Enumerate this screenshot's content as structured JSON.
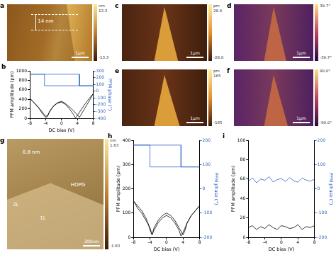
{
  "images": [
    {
      "panel": "a",
      "scale_bar": "1μm",
      "colorbar": {
        "unit": "nm",
        "ticks": [
          13.3,
          -13.3
        ]
      },
      "annotations": [
        "14 nm"
      ]
    },
    {
      "panel": "c",
      "scale_bar": "1μm",
      "colorbar": {
        "unit": "pm",
        "ticks": [
          {
            "value": 28,
            "label": "28.0"
          },
          {
            "value": -28,
            "label": "-28.0"
          }
        ]
      },
      "annotations": []
    },
    {
      "panel": "d",
      "scale_bar": "1μm",
      "colorbar": {
        "ticks": [
          {
            "value": 39.7,
            "label": "39.7°"
          },
          {
            "value": -39.7,
            "label": "-39.7°"
          }
        ]
      },
      "annotations": []
    },
    {
      "panel": "e",
      "scale_bar": "1μm",
      "colorbar": {
        "unit": "pm",
        "ticks": [
          165,
          -165
        ]
      },
      "annotations": []
    },
    {
      "panel": "f",
      "scale_bar": "1μm",
      "colorbar": {
        "ticks": [
          {
            "value": 90,
            "label": "90.0°"
          },
          {
            "value": -90,
            "label": "-90.0°"
          }
        ]
      },
      "annotations": []
    },
    {
      "panel": "g",
      "scale_bar": "300nm",
      "colorbar": {
        "unit": "nm",
        "ticks": [
          1.63,
          -1.63
        ]
      },
      "annotations": [
        "0.8 nm",
        "2L",
        "1L",
        "HOPG"
      ]
    }
  ],
  "chart_data": [
    {
      "panel": "b",
      "type": "line",
      "xlabel": "DC bias (V)",
      "ylabel": "PFM amplitude (pm)",
      "y2label": "PFM phase (°)",
      "xlim": [
        -8,
        8
      ],
      "xticks": [
        -8,
        -4,
        0,
        4,
        8
      ],
      "ylim": [
        0,
        1000
      ],
      "yticks": [
        0,
        200,
        400,
        600,
        800,
        1000
      ],
      "y2lim": [
        -400,
        300
      ],
      "y2ticks": [
        -400,
        -300,
        -200,
        -100,
        0,
        100,
        200,
        300
      ],
      "grid": false,
      "series": [
        {
          "color": "#000000",
          "axis": "y",
          "x": [
            -8,
            -7,
            -6,
            -5,
            -4.5,
            -4,
            -3.5,
            -3,
            -2,
            -1,
            0,
            1,
            2,
            3,
            4,
            4.5,
            5,
            6,
            7,
            8,
            8,
            7,
            6,
            5,
            4,
            3.5,
            3,
            2,
            1,
            0,
            -1,
            -2,
            -3,
            -3.5,
            -4,
            -5,
            -6,
            -7,
            -8
          ],
          "values": [
            420,
            330,
            240,
            150,
            90,
            40,
            60,
            140,
            260,
            330,
            360,
            310,
            240,
            160,
            70,
            20,
            90,
            230,
            370,
            520,
            520,
            420,
            310,
            190,
            60,
            10,
            80,
            200,
            290,
            340,
            320,
            260,
            150,
            40,
            20,
            120,
            250,
            340,
            420
          ]
        },
        {
          "color": "#2f5fbf",
          "axis": "y2",
          "x": [
            -8,
            4.5,
            4.5,
            8,
            8,
            -4.3,
            -4.3,
            -8
          ],
          "values": [
            250,
            250,
            80,
            80,
            80,
            80,
            250,
            250
          ]
        }
      ]
    },
    {
      "panel": "h",
      "type": "line",
      "xlabel": "DC bias (V)",
      "ylabel": "PFM amplitude (pm)",
      "y2label": "PFM phase (°)",
      "xlim": [
        -8,
        8
      ],
      "xticks": [
        -8,
        -4,
        0,
        4,
        8
      ],
      "ylim": [
        0,
        400
      ],
      "yticks": [
        0,
        100,
        200,
        300,
        400
      ],
      "y2lim": [
        -200,
        200
      ],
      "y2ticks": [
        -200,
        -100,
        0,
        100,
        200
      ],
      "grid": false,
      "series": [
        {
          "color": "#000000",
          "axis": "y",
          "x": [
            -8,
            -7,
            -6,
            -5,
            -4.5,
            -4,
            -3.5,
            -3,
            -2,
            -1,
            0,
            1,
            2,
            3,
            4,
            4.5,
            5,
            6,
            7,
            8,
            8,
            7,
            6,
            5,
            4,
            3.5,
            3,
            2,
            1,
            0,
            -1,
            -2,
            -3,
            -3.5,
            -4,
            -5,
            -6,
            -7,
            -8
          ],
          "values": [
            150,
            130,
            110,
            80,
            60,
            30,
            10,
            40,
            70,
            90,
            100,
            90,
            70,
            40,
            10,
            30,
            60,
            90,
            110,
            130,
            130,
            110,
            90,
            60,
            20,
            5,
            30,
            60,
            80,
            90,
            80,
            60,
            30,
            10,
            40,
            70,
            100,
            120,
            150
          ]
        },
        {
          "color": "#2f5fbf",
          "axis": "y2",
          "x": [
            -8,
            3.5,
            3.5,
            8,
            8,
            -4,
            -4,
            -8
          ],
          "values": [
            180,
            180,
            90,
            90,
            90,
            90,
            180,
            180
          ]
        }
      ]
    },
    {
      "panel": "i",
      "type": "line",
      "xlabel": "DC bias (V)",
      "ylabel": "PFM amplitude (pm)",
      "y2label": "PFM phase (°)",
      "xlim": [
        -8,
        8
      ],
      "xticks": [
        -8,
        -4,
        0,
        4,
        8
      ],
      "ylim": [
        0,
        100
      ],
      "yticks": [
        0,
        20,
        40,
        60,
        80,
        100
      ],
      "y2lim": [
        -200,
        200
      ],
      "y2ticks": [
        -200,
        -100,
        0,
        100,
        200
      ],
      "grid": false,
      "series": [
        {
          "color": "#000000",
          "axis": "y",
          "x": [
            -8,
            -7,
            -6,
            -5,
            -4,
            -3,
            -2,
            -1,
            0,
            1,
            2,
            3,
            4,
            5,
            6,
            7,
            8
          ],
          "values": [
            10,
            12,
            8,
            11,
            9,
            13,
            10,
            8,
            12,
            11,
            9,
            10,
            13,
            8,
            11,
            10,
            12
          ]
        },
        {
          "color": "#2f5fbf",
          "axis": "y2",
          "x": [
            -8,
            -7,
            -6,
            -5,
            -4,
            -3,
            -2,
            -1,
            0,
            1,
            2,
            3,
            4,
            5,
            6,
            7,
            8
          ],
          "values": [
            30,
            45,
            25,
            40,
            35,
            50,
            28,
            38,
            42,
            30,
            46,
            33,
            27,
            44,
            36,
            31,
            40
          ]
        }
      ]
    }
  ]
}
